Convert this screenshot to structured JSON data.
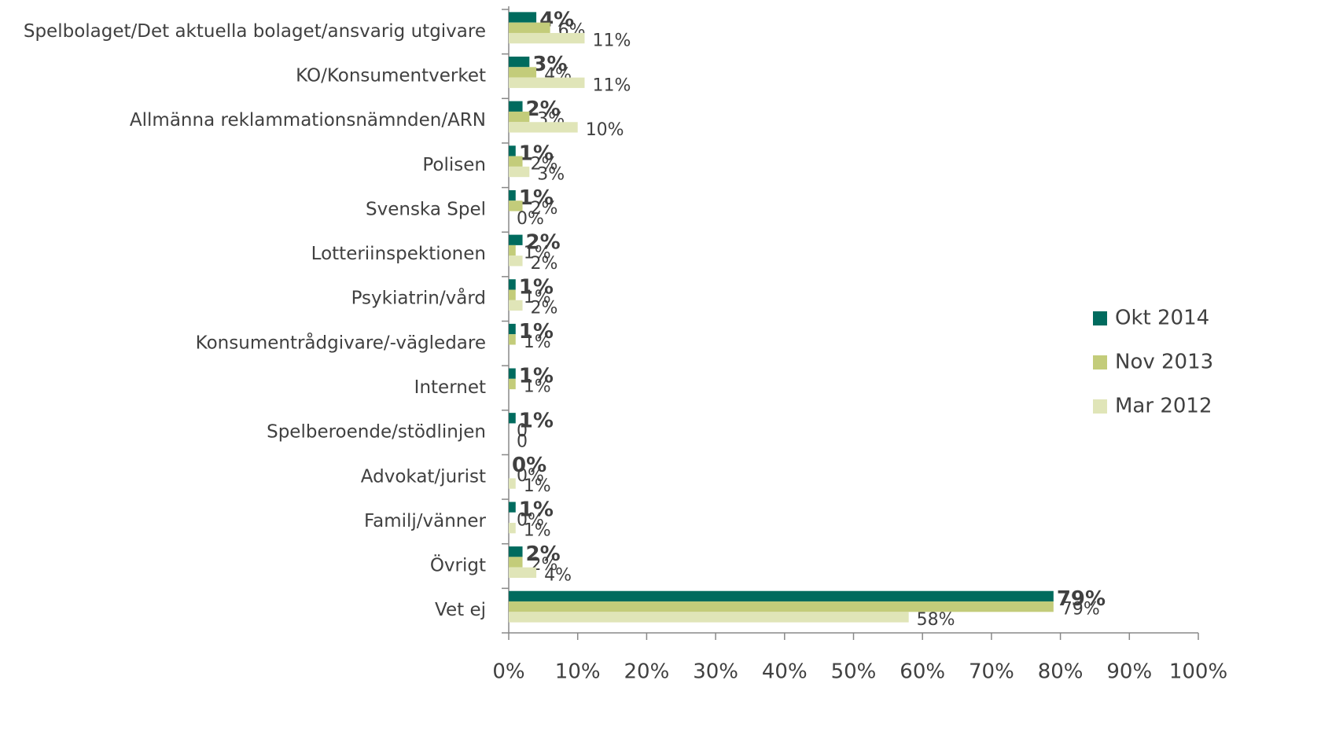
{
  "chart_data": {
    "type": "bar",
    "orientation": "horizontal",
    "categories": [
      "Spelbolaget/Det aktuella bolaget/ansvarig utgivare",
      "KO/Konsumentverket",
      "Allmänna reklammationsnämnden/ARN",
      "Polisen",
      "Svenska Spel",
      "Lotteriinspektionen",
      "Psykiatrin/vård",
      "Konsumentrådgivare/-vägledare",
      "Internet",
      "Spelberoende/stödlinjen",
      "Advokat/jurist",
      "Familj/vänner",
      "Övrigt",
      "Vet ej"
    ],
    "series": [
      {
        "name": "Okt 2014",
        "color": "#006b5e",
        "bold": true,
        "values": [
          4,
          3,
          2,
          1,
          1,
          2,
          1,
          1,
          1,
          1,
          0,
          1,
          2,
          79
        ],
        "value_labels": [
          "4%",
          "3%",
          "2%",
          "1%",
          "1%",
          "2%",
          "1%",
          "1%",
          "1%",
          "1%",
          "0%",
          "1%",
          "2%",
          "79%"
        ]
      },
      {
        "name": "Nov 2013",
        "color": "#c3cc7a",
        "values": [
          6,
          4,
          3,
          2,
          2,
          1,
          1,
          1,
          1,
          0,
          0,
          0,
          2,
          79
        ],
        "value_labels": [
          "6%",
          "4%",
          "3%",
          "2%",
          "2%",
          "1%",
          "1%",
          "1%",
          "1%",
          "0",
          "0%",
          "0%",
          "2%",
          "79%"
        ]
      },
      {
        "name": "Mar 2012",
        "color": "#e0e5b8",
        "values": [
          11,
          11,
          10,
          3,
          0,
          2,
          2,
          null,
          null,
          0,
          1,
          1,
          4,
          58
        ],
        "value_labels": [
          "11%",
          "11%",
          "10%",
          "3%",
          "0%",
          "2%",
          "2%",
          null,
          null,
          "0",
          "1%",
          "1%",
          "4%",
          "58%"
        ]
      }
    ],
    "xlim": [
      0,
      100
    ],
    "xticks": [
      {
        "value": 0,
        "label": "0%"
      },
      {
        "value": 10,
        "label": "10%"
      },
      {
        "value": 20,
        "label": "20%"
      },
      {
        "value": 30,
        "label": "30%"
      },
      {
        "value": 40,
        "label": "40%"
      },
      {
        "value": 50,
        "label": "50%"
      },
      {
        "value": 60,
        "label": "60%"
      },
      {
        "value": 70,
        "label": "70%"
      },
      {
        "value": 80,
        "label": "80%"
      },
      {
        "value": 90,
        "label": "90%"
      },
      {
        "value": 100,
        "label": "100%"
      }
    ],
    "grid": false,
    "legend": "right"
  }
}
